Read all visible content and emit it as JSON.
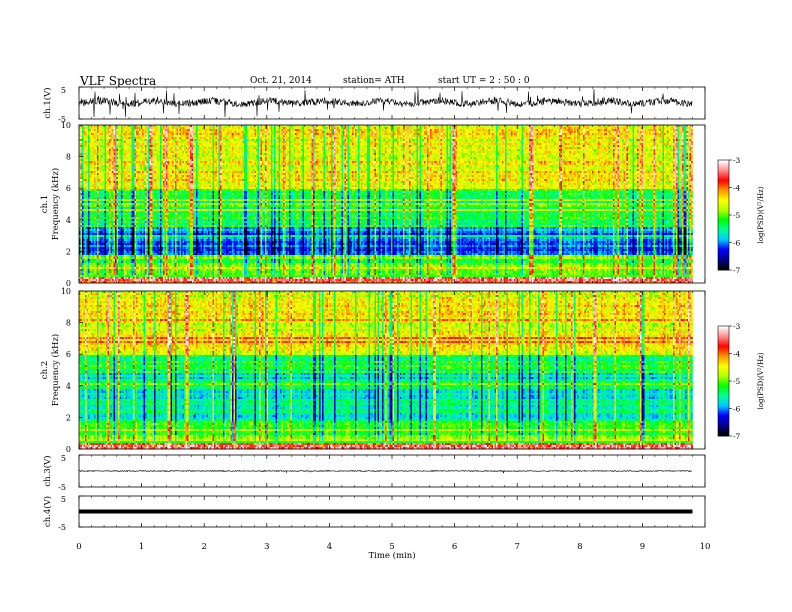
{
  "header": {
    "title": "VLF  Spectra",
    "date": "Oct. 21, 2014",
    "station": "station= ATH",
    "start_time": "start  UT  =   2  : 50 : 0"
  },
  "chart_data": {
    "type": "heatmap",
    "x": {
      "label": "Time  (min)",
      "range": [
        0,
        10
      ],
      "ticks": [
        0,
        1,
        2,
        3,
        4,
        5,
        6,
        7,
        8,
        9,
        10
      ],
      "data_end": 9.8
    },
    "panels": [
      {
        "id": "ch1-waveform",
        "type": "line",
        "ylabel": "ch.1(V)",
        "ylim": [
          -5,
          5
        ],
        "yticks": [
          5,
          -5
        ],
        "baseline": 0.2,
        "amplitude": "large"
      },
      {
        "id": "ch1-spectrogram",
        "type": "heatmap",
        "ylabel_top": "ch.1",
        "ylabel": "Frequency  (kHz)",
        "ylim": [
          0,
          10
        ],
        "yticks": [
          0,
          2,
          4,
          6,
          8,
          10
        ]
      },
      {
        "id": "ch2-spectrogram",
        "type": "heatmap",
        "ylabel_top": "ch.2",
        "ylabel": "Frequency  (kHz)",
        "ylim": [
          0,
          10
        ],
        "yticks": [
          0,
          2,
          4,
          6,
          8,
          10
        ]
      },
      {
        "id": "ch3-waveform",
        "type": "line",
        "ylabel": "ch.3(V)",
        "ylim": [
          -5,
          5
        ],
        "yticks": [
          5,
          -5
        ],
        "baseline": 0.0,
        "amplitude": "small"
      },
      {
        "id": "ch4-waveform",
        "type": "line",
        "ylabel": "ch.4(V)",
        "ylim": [
          -5,
          5
        ],
        "yticks": [
          5,
          -5
        ],
        "baseline": 0.0,
        "amplitude": "flat-thick"
      }
    ],
    "colorbars": [
      {
        "label": "log(PSD)(V²/Hz)",
        "range": [
          -7,
          -3
        ],
        "ticks": [
          -3,
          -4,
          -5,
          -6,
          -7
        ]
      },
      {
        "label": "log(PSD)(V²/Hz)",
        "range": [
          -7,
          -3
        ],
        "ticks": [
          -3,
          -4,
          -5,
          -6,
          -7
        ]
      }
    ],
    "colormap": [
      "#000000",
      "#00008b",
      "#0000ff",
      "#00c8ff",
      "#00ff96",
      "#00ff00",
      "#b4ff00",
      "#ffff00",
      "#ff9600",
      "#ff0000",
      "#ff8c8c",
      "#ffffff"
    ]
  }
}
